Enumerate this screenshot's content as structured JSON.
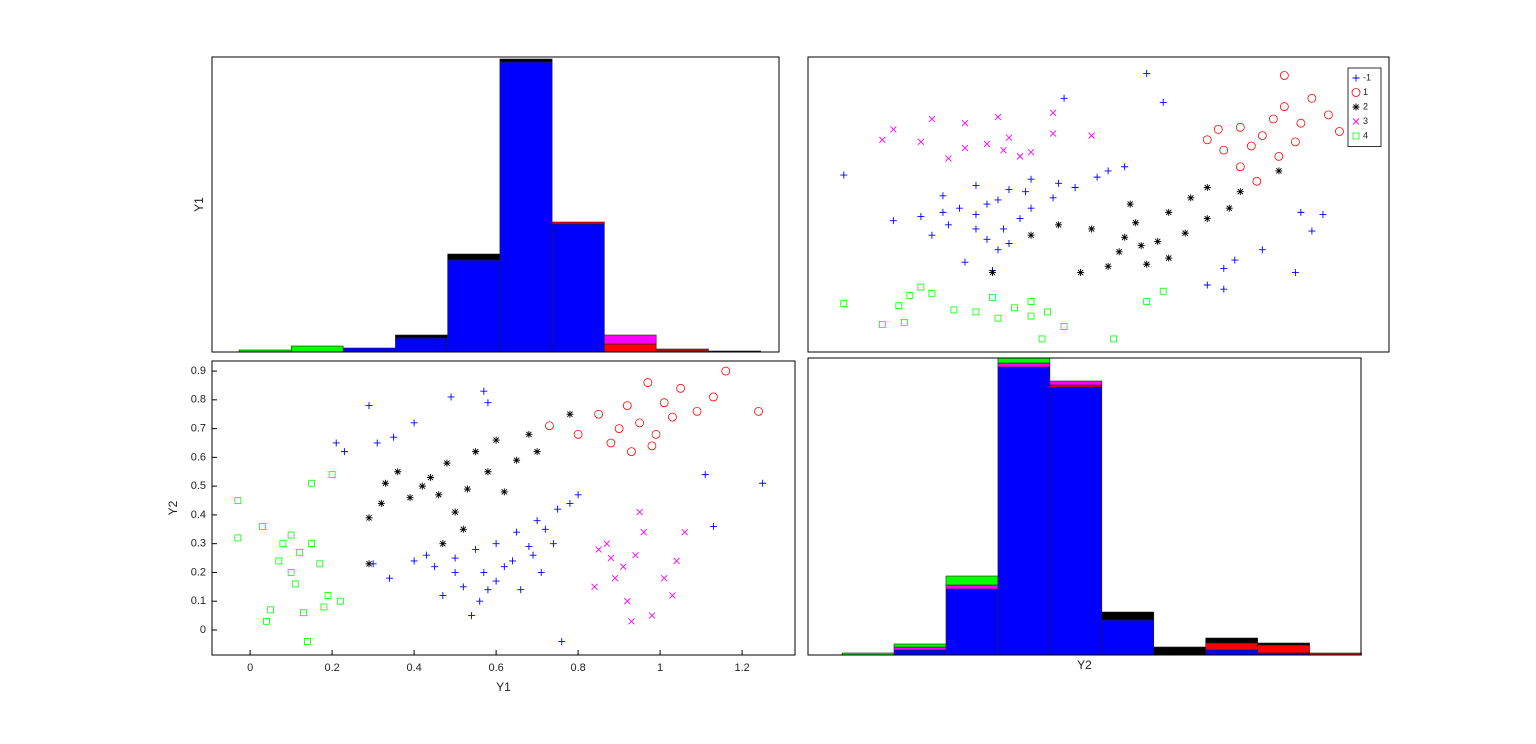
{
  "chart_data": [
    {
      "type": "histogram",
      "ylabel": "Y1",
      "bins": [
        -0.025,
        0.106,
        0.236,
        0.367,
        0.498,
        0.629,
        0.76,
        0.891,
        1.021,
        1.152,
        1.283
      ],
      "xlim": [
        -0.093,
        1.329
      ],
      "ylim": [
        0,
        295
      ],
      "series": [
        {
          "color": "#0000ff",
          "values": [
            0,
            0,
            4,
            14,
            92,
            290,
            128,
            0,
            0,
            0
          ]
        },
        {
          "color": "#ff0000",
          "values": [
            0,
            0,
            0,
            0,
            0,
            0,
            2,
            8,
            2,
            0
          ]
        },
        {
          "color": "#000000",
          "values": [
            0,
            0,
            0,
            3,
            6,
            3,
            0,
            0,
            0,
            1
          ]
        },
        {
          "color": "#ff00ff",
          "values": [
            0,
            0,
            0,
            0,
            0,
            0,
            0,
            9,
            1,
            0
          ]
        },
        {
          "color": "#00ff00",
          "values": [
            2,
            6,
            0,
            0,
            0,
            0,
            0,
            0,
            0,
            0
          ]
        }
      ]
    },
    {
      "type": "scatter",
      "legend": "northeast",
      "xlim": [
        -0.105,
        0.95
      ],
      "ylim": [
        -0.093,
        1.329
      ],
      "series": [
        {
          "name": "-1",
          "color": "#0000ff",
          "marker": "plus",
          "x": [
            0.78,
            0.65,
            0.67,
            0.72,
            0.81,
            0.83,
            0.79,
            0.65,
            0.62,
            0.23,
            0.18,
            0.24,
            0.22,
            0.25,
            0.28,
            0.3,
            0.34,
            0.38,
            0.42,
            0.47,
            0.44,
            0.35,
            0.29,
            0.22,
            0.2,
            0.15,
            0.12,
            0.1,
            0.14,
            0.2,
            0.3,
            0.05,
            -0.04,
            0.54,
            0.36,
            0.51,
            0.14,
            0.24,
            0.26,
            0.17,
            0.2,
            0.26
          ],
          "values": [
            0.29,
            0.31,
            0.35,
            0.4,
            0.49,
            0.57,
            0.58,
            0.21,
            0.23,
            0.3,
            0.34,
            0.4,
            0.45,
            0.5,
            0.55,
            0.6,
            0.65,
            0.7,
            0.75,
            0.8,
            0.78,
            0.72,
            0.68,
            0.62,
            0.57,
            0.52,
            0.47,
            0.56,
            0.66,
            0.71,
            0.74,
            0.54,
            0.76,
            1.11,
            1.13,
            1.25,
            0.58,
            0.64,
            0.69,
            0.6,
            0.5,
            0.43
          ]
        },
        {
          "name": "1",
          "color": "#ff0000",
          "marker": "circle",
          "x": [
            0.71,
            0.68,
            0.75,
            0.65,
            0.7,
            0.78,
            0.72,
            0.86,
            0.68,
            0.79,
            0.74,
            0.84,
            0.76,
            0.81,
            0.9,
            0.76,
            0.62,
            0.64
          ],
          "values": [
            0.73,
            0.8,
            0.85,
            0.88,
            0.9,
            0.92,
            0.95,
            0.97,
            0.99,
            1.01,
            1.03,
            1.05,
            1.09,
            1.13,
            1.16,
            1.24,
            0.93,
            0.98
          ]
        },
        {
          "name": "2",
          "color": "#000000",
          "marker": "star",
          "x": [
            0.39,
            0.44,
            0.51,
            0.55,
            0.46,
            0.5,
            0.53,
            0.47,
            0.58,
            0.41,
            0.49,
            0.62,
            0.55,
            0.66,
            0.48,
            0.59,
            0.68,
            0.62,
            0.75,
            0.35,
            0.3,
            0.23
          ],
          "values": [
            0.29,
            0.32,
            0.33,
            0.36,
            0.39,
            0.42,
            0.44,
            0.46,
            0.48,
            0.5,
            0.53,
            0.55,
            0.58,
            0.6,
            0.62,
            0.65,
            0.68,
            0.7,
            0.78,
            0.52,
            0.47,
            0.29
          ]
        },
        {
          "name": "3",
          "color": "#ff00ff",
          "marker": "cross",
          "x": [
            0.15,
            0.28,
            0.3,
            0.18,
            0.22,
            0.1,
            0.26,
            0.34,
            0.05,
            0.18,
            0.12,
            0.34,
            0.24,
            0.41,
            0.25,
            0.03
          ],
          "values": [
            0.84,
            0.85,
            0.87,
            0.89,
            0.91,
            0.92,
            0.94,
            0.96,
            0.98,
            1.01,
            1.03,
            1.06,
            1.04,
            0.95,
            0.88,
            0.93
          ]
        },
        {
          "name": "4",
          "color": "#00ff00",
          "marker": "square",
          "x": [
            0.45,
            0.32,
            0.36,
            0.03,
            0.07,
            0.24,
            0.3,
            0.2,
            0.16,
            0.06,
            -0.04,
            0.51,
            0.3,
            0.23,
            0.08,
            0.12,
            0.54,
            0.1,
            0.33,
            0.27
          ],
          "values": [
            -0.03,
            -0.03,
            0.03,
            0.04,
            0.05,
            0.07,
            0.08,
            0.1,
            0.11,
            0.13,
            0.14,
            0.15,
            0.15,
            0.17,
            0.18,
            0.19,
            0.2,
            0.22,
            0.1,
            0.12
          ]
        }
      ]
    },
    {
      "type": "scatter",
      "xlabel": "Y1",
      "ylabel": "Y2",
      "xlim": [
        -0.093,
        1.329
      ],
      "ylim": [
        -0.087,
        0.935
      ],
      "xticks": [
        0,
        0.2,
        0.4,
        0.6,
        0.8,
        1,
        1.2
      ],
      "yticks": [
        0,
        0.1,
        0.2,
        0.3,
        0.4,
        0.5,
        0.6,
        0.7,
        0.8,
        0.9
      ],
      "series": [
        {
          "color": "#0000ff",
          "marker": "plus",
          "x": [
            0.29,
            0.31,
            0.35,
            0.4,
            0.49,
            0.57,
            0.58,
            0.21,
            0.23,
            0.3,
            0.34,
            0.4,
            0.45,
            0.5,
            0.55,
            0.6,
            0.65,
            0.7,
            0.75,
            0.8,
            0.78,
            0.72,
            0.68,
            0.62,
            0.57,
            0.52,
            0.47,
            0.56,
            0.66,
            0.71,
            0.74,
            0.54,
            0.76,
            1.11,
            1.13,
            1.25,
            0.58,
            0.64,
            0.69,
            0.6,
            0.5,
            0.43
          ],
          "values": [
            0.78,
            0.65,
            0.67,
            0.72,
            0.81,
            0.83,
            0.79,
            0.65,
            0.62,
            0.23,
            0.18,
            0.24,
            0.22,
            0.25,
            0.28,
            0.3,
            0.34,
            0.38,
            0.42,
            0.47,
            0.44,
            0.35,
            0.29,
            0.22,
            0.2,
            0.15,
            0.12,
            0.1,
            0.14,
            0.2,
            0.3,
            0.05,
            -0.04,
            0.54,
            0.36,
            0.51,
            0.14,
            0.24,
            0.26,
            0.17,
            0.2,
            0.26
          ]
        },
        {
          "color": "#ff0000",
          "marker": "circle",
          "x": [
            0.73,
            0.8,
            0.85,
            0.88,
            0.9,
            0.92,
            0.95,
            0.97,
            0.99,
            1.01,
            1.03,
            1.05,
            1.09,
            1.13,
            1.16,
            1.24,
            0.93,
            0.98
          ],
          "values": [
            0.71,
            0.68,
            0.75,
            0.65,
            0.7,
            0.78,
            0.72,
            0.86,
            0.68,
            0.79,
            0.74,
            0.84,
            0.76,
            0.81,
            0.9,
            0.76,
            0.62,
            0.64
          ]
        },
        {
          "color": "#000000",
          "marker": "star",
          "x": [
            0.29,
            0.32,
            0.33,
            0.36,
            0.39,
            0.42,
            0.44,
            0.46,
            0.48,
            0.5,
            0.53,
            0.55,
            0.58,
            0.6,
            0.62,
            0.65,
            0.68,
            0.7,
            0.78,
            0.52,
            0.47,
            0.29
          ],
          "values": [
            0.39,
            0.44,
            0.51,
            0.55,
            0.46,
            0.5,
            0.53,
            0.47,
            0.58,
            0.41,
            0.49,
            0.62,
            0.55,
            0.66,
            0.48,
            0.59,
            0.68,
            0.62,
            0.75,
            0.35,
            0.3,
            0.23
          ]
        },
        {
          "color": "#ff00ff",
          "marker": "cross",
          "x": [
            0.84,
            0.85,
            0.87,
            0.89,
            0.91,
            0.92,
            0.94,
            0.96,
            0.98,
            1.01,
            1.03,
            1.06,
            1.04,
            0.95,
            0.88,
            0.93
          ],
          "values": [
            0.15,
            0.28,
            0.3,
            0.18,
            0.22,
            0.1,
            0.26,
            0.34,
            0.05,
            0.18,
            0.12,
            0.34,
            0.24,
            0.41,
            0.25,
            0.03
          ]
        },
        {
          "color": "#00ff00",
          "marker": "square",
          "x": [
            -0.03,
            -0.03,
            0.03,
            0.04,
            0.05,
            0.07,
            0.08,
            0.1,
            0.11,
            0.13,
            0.14,
            0.15,
            0.15,
            0.17,
            0.18,
            0.19,
            0.2,
            0.22,
            0.1,
            0.12
          ],
          "values": [
            0.45,
            0.32,
            0.36,
            0.03,
            0.07,
            0.24,
            0.3,
            0.2,
            0.16,
            0.06,
            -0.04,
            0.51,
            0.3,
            0.23,
            0.08,
            0.12,
            0.54,
            0.1,
            0.33,
            0.27
          ]
        }
      ]
    },
    {
      "type": "histogram",
      "xlabel": "Y2",
      "bins": [
        -0.024,
        0.072,
        0.168,
        0.264,
        0.36,
        0.456,
        0.552,
        0.648,
        0.744,
        0.84,
        0.936
      ],
      "xlim": [
        -0.087,
        0.935
      ],
      "ylim": [
        0,
        297
      ],
      "series": [
        {
          "color": "#0000ff",
          "values": [
            0,
            5,
            66,
            288,
            268,
            35,
            0,
            5,
            2,
            0
          ]
        },
        {
          "color": "#ff0000",
          "values": [
            0,
            0,
            0,
            0,
            2,
            0,
            0,
            7,
            8,
            2
          ]
        },
        {
          "color": "#000000",
          "values": [
            0,
            0,
            0,
            0,
            0,
            8,
            8,
            5,
            2,
            0
          ]
        },
        {
          "color": "#ff00ff",
          "values": [
            0,
            3,
            4,
            4,
            4,
            0,
            0,
            0,
            0,
            0
          ]
        },
        {
          "color": "#00ff00",
          "values": [
            2,
            3,
            9,
            5,
            0,
            0,
            0,
            0,
            0,
            0
          ]
        }
      ]
    }
  ]
}
